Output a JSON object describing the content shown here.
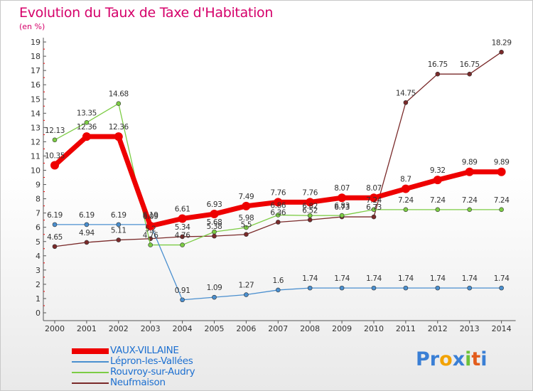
{
  "title": "Evolution du Taux de Taxe d'Habitation",
  "subtitle": "(en %)",
  "logo": {
    "text": "Proxiti",
    "letters": [
      {
        "ch": "P",
        "color": "#3a7fd5"
      },
      {
        "ch": "r",
        "color": "#3a7fd5"
      },
      {
        "ch": "o",
        "color": "#f2a200"
      },
      {
        "ch": "x",
        "color": "#3a7fd5"
      },
      {
        "ch": "i",
        "color": "#6cc23a"
      },
      {
        "ch": "t",
        "color": "#e25c1c"
      },
      {
        "ch": "i",
        "color": "#3a7fd5"
      }
    ]
  },
  "chart_data": {
    "type": "line",
    "x": [
      "2000",
      "2001",
      "2002",
      "2003",
      "2004",
      "2005",
      "2006",
      "2007",
      "2008",
      "2009",
      "2010",
      "2011",
      "2012",
      "2013",
      "2014"
    ],
    "yticks": [
      "0",
      "1",
      "2",
      "3",
      "4",
      "5",
      "6",
      "7",
      "8",
      "9",
      "10",
      "11",
      "12",
      "13",
      "14",
      "15",
      "16",
      "17",
      "18",
      "19"
    ],
    "ylim": [
      0,
      19
    ],
    "grid": false,
    "legend_position": "bottom-left",
    "series": [
      {
        "name": "VAUX-VILLAINE",
        "color": "#ee0000",
        "values": [
          10.35,
          12.36,
          12.36,
          6.09,
          6.61,
          6.93,
          7.49,
          7.76,
          7.76,
          8.07,
          8.07,
          8.7,
          9.32,
          9.89,
          9.89
        ],
        "labels": [
          "10.35",
          "12.36",
          "12.36",
          "6.09",
          "6.61",
          "6.93",
          "7.49",
          "7.76",
          "7.76",
          "8.07",
          "8.07",
          "8.7",
          "9.32",
          "9.89",
          "9.89"
        ]
      },
      {
        "name": "Lépron-les-Vallées",
        "color": "#4a8fcf",
        "values": [
          6.19,
          6.19,
          6.19,
          6.19,
          0.91,
          1.09,
          1.27,
          1.6,
          1.74,
          1.74,
          1.74,
          1.74,
          1.74,
          1.74,
          1.74
        ],
        "labels": [
          "6.19",
          "6.19",
          "6.19",
          "6.19",
          "0.91",
          "1.09",
          "1.27",
          "1.6",
          "1.74",
          "1.74",
          "1.74",
          "1.74",
          "1.74",
          "1.74",
          "1.74"
        ]
      },
      {
        "name": "Rouvroy-sur-Audry",
        "color": "#7ccc44",
        "values": [
          12.13,
          13.35,
          14.68,
          4.76,
          4.76,
          5.68,
          5.98,
          6.86,
          6.82,
          6.83,
          7.24,
          7.24,
          7.24,
          7.24,
          7.24
        ],
        "labels": [
          "12.13",
          "13.35",
          "14.68",
          "4.76",
          "4.76",
          "5.68",
          "5.98",
          "6.86",
          "6.82",
          "6.83",
          "7.24",
          "7.24",
          "7.24",
          "7.24",
          "7.24"
        ]
      },
      {
        "name": "Neufmaison",
        "color": "#7a2a2a",
        "values": [
          4.65,
          4.94,
          5.11,
          5.2,
          5.34,
          5.38,
          5.5,
          6.36,
          6.52,
          6.73,
          6.73,
          14.75,
          16.75,
          16.75,
          18.29
        ],
        "labels": [
          "4.65",
          "4.94",
          "5.11",
          "5.2",
          "5.34",
          "5.38",
          "5.5",
          "6.36",
          "6.52",
          "6.73",
          "6.73",
          "14.75",
          "16.75",
          "16.75",
          "18.29"
        ]
      }
    ]
  }
}
